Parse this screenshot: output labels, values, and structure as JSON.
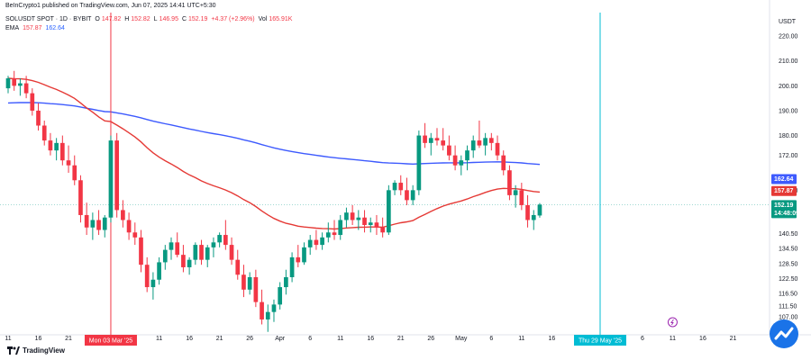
{
  "publisher_line": "BeInCrypto1 published on TradingView.com, Jun 07, 2025 14:41 UTC+5:30",
  "symbol_line": {
    "symbol": "SOLUSDT SPOT · 1D · BYBIT",
    "o_label": "O",
    "o": "147.82",
    "h_label": "H",
    "h": "152.82",
    "l_label": "L",
    "l": "146.95",
    "c_label": "C",
    "c": "152.19",
    "change": "+4.37 (+2.96%)",
    "vol_label": "Vol",
    "vol": "165.91K"
  },
  "ema_line": {
    "label": "EMA",
    "v1": "157.87",
    "v2": "162.64"
  },
  "branding": "TradingView",
  "colors": {
    "up": "#089981",
    "down": "#f23645",
    "ema_short": "#e53935",
    "ema_long": "#3d5afe",
    "vline_red": "#f23645",
    "vline_cyan": "#00bcd4",
    "current_line": "#80cbc4"
  },
  "chart_data": {
    "type": "candlestick",
    "currency": "USDT",
    "y_ticks": [
      107.0,
      111.5,
      116.5,
      122.5,
      128.5,
      134.5,
      140.5,
      158.0,
      172.0,
      180.0,
      190.0,
      200.0,
      210.0,
      220.0
    ],
    "y_tick_labels": [
      "107.00",
      "111.50",
      "116.50",
      "122.50",
      "128.50",
      "134.50",
      "140.50",
      "158.00",
      "172.00",
      "180.00",
      "190.00",
      "200.00",
      "210.00",
      "220.00"
    ],
    "ylim": [
      102,
      228
    ],
    "x_ticks": [
      {
        "i": 0,
        "label": "11"
      },
      {
        "i": 5,
        "label": "16"
      },
      {
        "i": 10,
        "label": "21"
      },
      {
        "i": 25,
        "label": "11"
      },
      {
        "i": 30,
        "label": "16"
      },
      {
        "i": 35,
        "label": "21"
      },
      {
        "i": 40,
        "label": "26"
      },
      {
        "i": 45,
        "label": "Apr"
      },
      {
        "i": 50,
        "label": "6"
      },
      {
        "i": 55,
        "label": "11"
      },
      {
        "i": 60,
        "label": "16"
      },
      {
        "i": 65,
        "label": "21"
      },
      {
        "i": 70,
        "label": "26"
      },
      {
        "i": 75,
        "label": "May"
      },
      {
        "i": 80,
        "label": "6"
      },
      {
        "i": 85,
        "label": "11"
      },
      {
        "i": 90,
        "label": "16"
      },
      {
        "i": 95,
        "label": "21"
      },
      {
        "i": 105,
        "label": "6"
      },
      {
        "i": 110,
        "label": "11"
      },
      {
        "i": 115,
        "label": "16"
      },
      {
        "i": 120,
        "label": "21"
      }
    ],
    "x_count": 126,
    "candles": [
      [
        199,
        204,
        197,
        203
      ],
      [
        203,
        206,
        198,
        200
      ],
      [
        200,
        203,
        196,
        201
      ],
      [
        201,
        204,
        195,
        197
      ],
      [
        197,
        199,
        188,
        190
      ],
      [
        190,
        193,
        182,
        184
      ],
      [
        184,
        186,
        176,
        178
      ],
      [
        178,
        181,
        172,
        174
      ],
      [
        174,
        179,
        170,
        177
      ],
      [
        177,
        180,
        168,
        170
      ],
      [
        170,
        176,
        165,
        168
      ],
      [
        168,
        172,
        160,
        162
      ],
      [
        162,
        164,
        145,
        148
      ],
      [
        148,
        153,
        140,
        143
      ],
      [
        143,
        149,
        138,
        146
      ],
      [
        146,
        150,
        140,
        142
      ],
      [
        142,
        148,
        139,
        147
      ],
      [
        147,
        180,
        145,
        178
      ],
      [
        178,
        181,
        147,
        150
      ],
      [
        150,
        154,
        143,
        146
      ],
      [
        146,
        149,
        138,
        141
      ],
      [
        141,
        145,
        136,
        139
      ],
      [
        139,
        142,
        125,
        128
      ],
      [
        128,
        131,
        117,
        119
      ],
      [
        119,
        125,
        114,
        122
      ],
      [
        122,
        131,
        120,
        129
      ],
      [
        129,
        136,
        126,
        134
      ],
      [
        134,
        139,
        130,
        137
      ],
      [
        137,
        141,
        131,
        132
      ],
      [
        132,
        136,
        125,
        127
      ],
      [
        127,
        131,
        124,
        130
      ],
      [
        130,
        137,
        128,
        136
      ],
      [
        136,
        138,
        128,
        130
      ],
      [
        130,
        136,
        127,
        135
      ],
      [
        135,
        139,
        131,
        137
      ],
      [
        137,
        141,
        135,
        140
      ],
      [
        140,
        146,
        134,
        136
      ],
      [
        136,
        139,
        128,
        130
      ],
      [
        130,
        134,
        122,
        124
      ],
      [
        124,
        128,
        115,
        118
      ],
      [
        118,
        125,
        116,
        123
      ],
      [
        123,
        126,
        111,
        113
      ],
      [
        113,
        118,
        104,
        106
      ],
      [
        106,
        112,
        101,
        109
      ],
      [
        109,
        114,
        105,
        112
      ],
      [
        112,
        121,
        110,
        119
      ],
      [
        119,
        126,
        116,
        123
      ],
      [
        123,
        133,
        121,
        131
      ],
      [
        131,
        136,
        127,
        129
      ],
      [
        129,
        137,
        128,
        135
      ],
      [
        135,
        140,
        132,
        138
      ],
      [
        138,
        142,
        134,
        136
      ],
      [
        136,
        141,
        134,
        139
      ],
      [
        139,
        145,
        137,
        141
      ],
      [
        141,
        146,
        138,
        140
      ],
      [
        140,
        148,
        138,
        146
      ],
      [
        146,
        151,
        143,
        149
      ],
      [
        149,
        152,
        144,
        146
      ],
      [
        146,
        150,
        142,
        147
      ],
      [
        147,
        150,
        141,
        144
      ],
      [
        144,
        147,
        141,
        145
      ],
      [
        145,
        148,
        140,
        143
      ],
      [
        143,
        147,
        139,
        141
      ],
      [
        141,
        160,
        140,
        158
      ],
      [
        158,
        162,
        156,
        161
      ],
      [
        161,
        164,
        156,
        158
      ],
      [
        158,
        163,
        152,
        154
      ],
      [
        154,
        160,
        152,
        158
      ],
      [
        158,
        182,
        156,
        180
      ],
      [
        180,
        185,
        175,
        177
      ],
      [
        177,
        181,
        172,
        179
      ],
      [
        179,
        183,
        176,
        178
      ],
      [
        178,
        183,
        174,
        176
      ],
      [
        176,
        180,
        170,
        172
      ],
      [
        172,
        176,
        166,
        168
      ],
      [
        168,
        172,
        164,
        170
      ],
      [
        170,
        176,
        166,
        174
      ],
      [
        174,
        180,
        171,
        178
      ],
      [
        178,
        186,
        175,
        176
      ],
      [
        176,
        181,
        172,
        179
      ],
      [
        179,
        181,
        174,
        177
      ],
      [
        177,
        180,
        170,
        172
      ],
      [
        172,
        174,
        164,
        166
      ],
      [
        166,
        168,
        154,
        156
      ],
      [
        156,
        160,
        151,
        158
      ],
      [
        158,
        161,
        150,
        152
      ],
      [
        152,
        156,
        143,
        146
      ],
      [
        146,
        150,
        142,
        148
      ],
      [
        147.82,
        152.82,
        146.95,
        152.19
      ]
    ],
    "candle_start_index": 0,
    "candle_step_scale": 0.9,
    "ema_short": {
      "name": "EMA",
      "last": 157.87
    },
    "ema_long": {
      "name": "EMA",
      "last": 162.64
    },
    "current_price": 152.19,
    "current_price_label": "152.19",
    "countdown_label": "14:48:09",
    "ema_short_label": "157.87",
    "ema_long_label": "162.64",
    "vlines": [
      {
        "i": 17,
        "label": "Mon 03 Mar '25",
        "color": "#f23645"
      },
      {
        "i": 98,
        "label": "Thu 29 May '25",
        "color": "#00bcd4"
      }
    ]
  }
}
